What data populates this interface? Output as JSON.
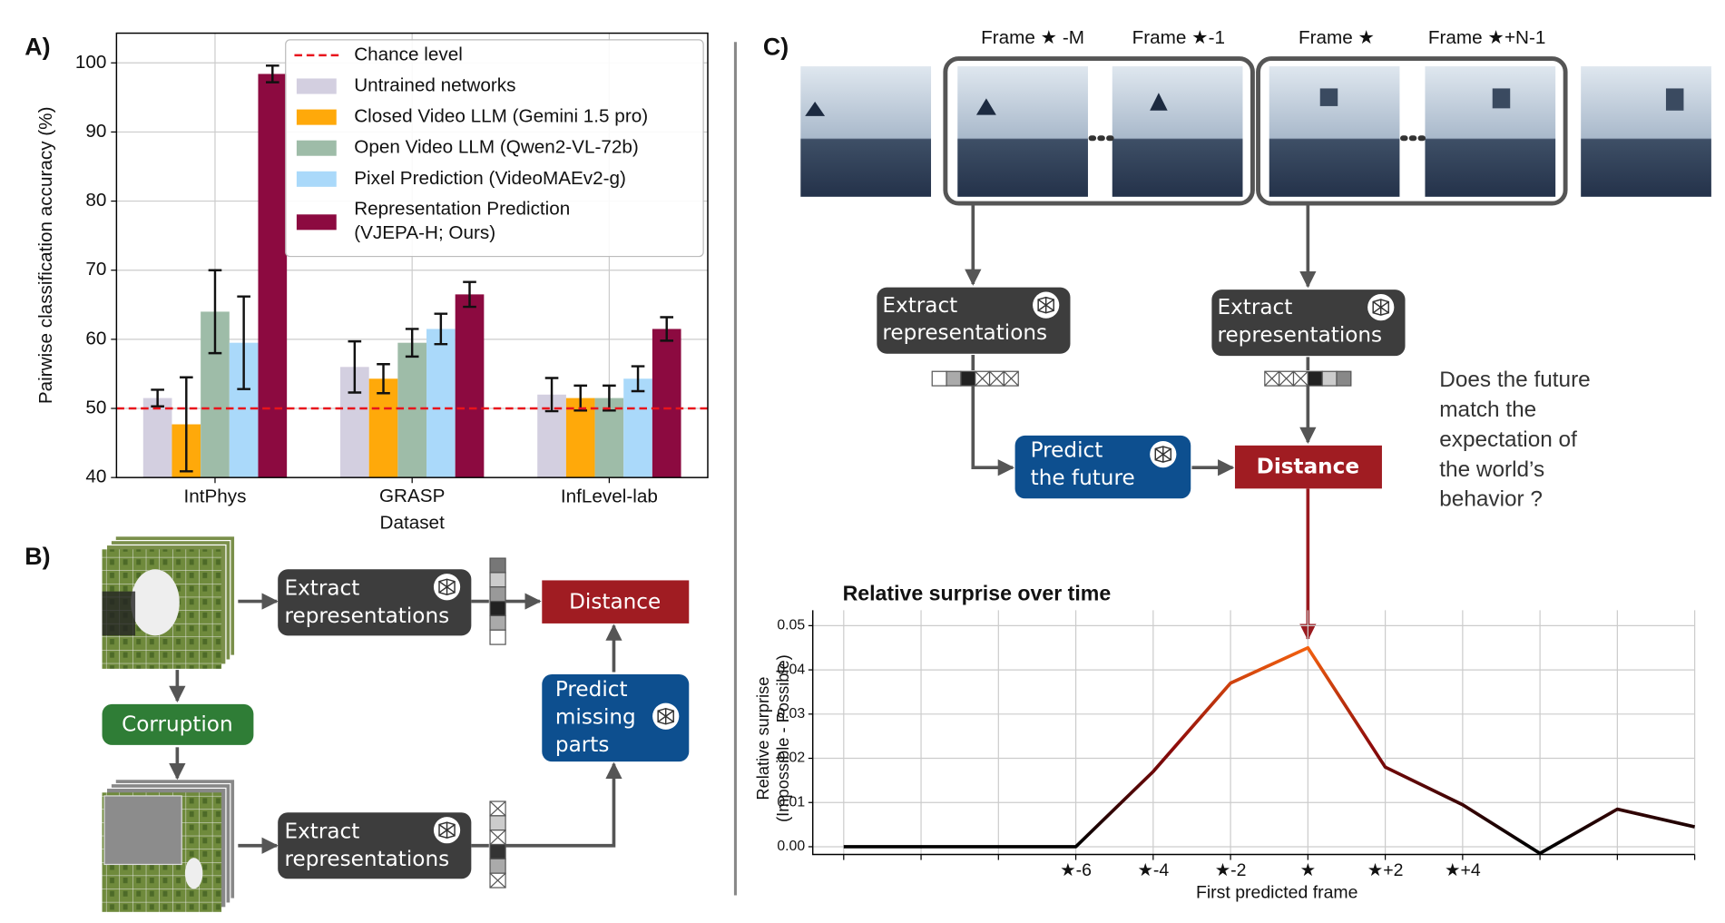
{
  "panels": [
    "A)",
    "B)",
    "C)"
  ],
  "chart_data": [
    {
      "type": "bar",
      "ylabel": "Pairwise classification accuracy (%)",
      "categories": [
        "IntPhys",
        "GRASP\nDataset",
        "InfLevel-lab"
      ],
      "series": [
        {
          "name": "Untrained networks",
          "color": "#d3cfe0",
          "values": [
            51.5,
            56,
            52
          ],
          "errors": [
            1.2,
            3.7,
            2.4
          ]
        },
        {
          "name": "Closed Video LLM (Gemini 1.5 pro)",
          "color": "#ffa90a",
          "values": [
            47.7,
            54.3,
            51.5
          ],
          "errors": [
            6.8,
            2.1,
            1.8
          ]
        },
        {
          "name": "Open Video LLM (Qwen2-VL-72b)",
          "color": "#9ebca8",
          "values": [
            64,
            59.5,
            51.5
          ],
          "errors": [
            6,
            2,
            1.8
          ]
        },
        {
          "name": "Pixel Prediction (VideoMAEv2-g)",
          "color": "#aad9fa",
          "values": [
            59.5,
            61.5,
            54.3
          ],
          "errors": [
            6.7,
            2.2,
            1.8
          ]
        },
        {
          "name": "Representation Prediction\n(VJEPA-H; Ours)",
          "color": "#8c0a40",
          "values": [
            98.4,
            66.5,
            61.5
          ],
          "errors": [
            1.2,
            1.8,
            1.7
          ]
        }
      ],
      "hline": {
        "value": 50,
        "name": "Chance level",
        "color": "#e8141c"
      },
      "ylim": [
        40,
        104.3
      ],
      "yticks": [
        40,
        50,
        60,
        70,
        80,
        90,
        100
      ],
      "grid": true,
      "legend": "upper right"
    },
    {
      "type": "line",
      "title": "Relative surprise over time",
      "xlabel": "First predicted frame",
      "ylabel": "Relative surprise\n(Impossible - Possible)",
      "x": [
        -12,
        -10,
        -8,
        -6,
        -4,
        -2,
        0,
        2,
        4,
        6,
        8,
        10
      ],
      "values": [
        0,
        0,
        0,
        0,
        0.017,
        0.037,
        0.045,
        0.018,
        0.0095,
        -0.0015,
        0.0085,
        0.0045
      ],
      "colors": [
        "#000000",
        "#8e0b0b",
        "#f2600f"
      ],
      "xlim": [
        -12.8,
        10
      ],
      "ylim": [
        -0.00175,
        0.0535
      ],
      "xticks": [
        {
          "value": -6,
          "label": "★-6"
        },
        {
          "value": -4,
          "label": "★-4"
        },
        {
          "value": -2,
          "label": "★-2"
        },
        {
          "value": 0,
          "label": "★"
        },
        {
          "value": 2,
          "label": "★+2"
        },
        {
          "value": 4,
          "label": "★+4"
        }
      ],
      "xgrid": [
        -12,
        -10,
        -8,
        -6,
        -4,
        -2,
        0,
        2,
        4,
        6,
        8,
        10
      ],
      "yticks": [
        {
          "value": 0,
          "label": "0.00"
        },
        {
          "value": 0.01,
          "label": "0.01"
        },
        {
          "value": 0.02,
          "label": "0.02"
        },
        {
          "value": 0.03,
          "label": "0.03"
        },
        {
          "value": 0.04,
          "label": "0.04"
        },
        {
          "value": 0.05,
          "label": "0.05"
        }
      ],
      "grid": true
    }
  ],
  "diagram_b": {
    "extract_top": "Extract\nrepresentations",
    "extract_bottom": "Extract\nrepresentations",
    "corruption": "Corruption",
    "distance": "Distance",
    "predict": "Predict\nmissing\nparts"
  },
  "diagram_c": {
    "frames": [
      "Frame ★ -M",
      "Frame ★-1",
      "Frame ★",
      "Frame ★+N-1"
    ],
    "extract_left": "Extract\nrepresentations",
    "extract_right": "Extract\nrepresentations",
    "predict": "Predict\nthe future",
    "distance": "Distance",
    "question": "Does the future\nmatch the\nexpectation of\nthe world’s\nbehavior ?"
  }
}
